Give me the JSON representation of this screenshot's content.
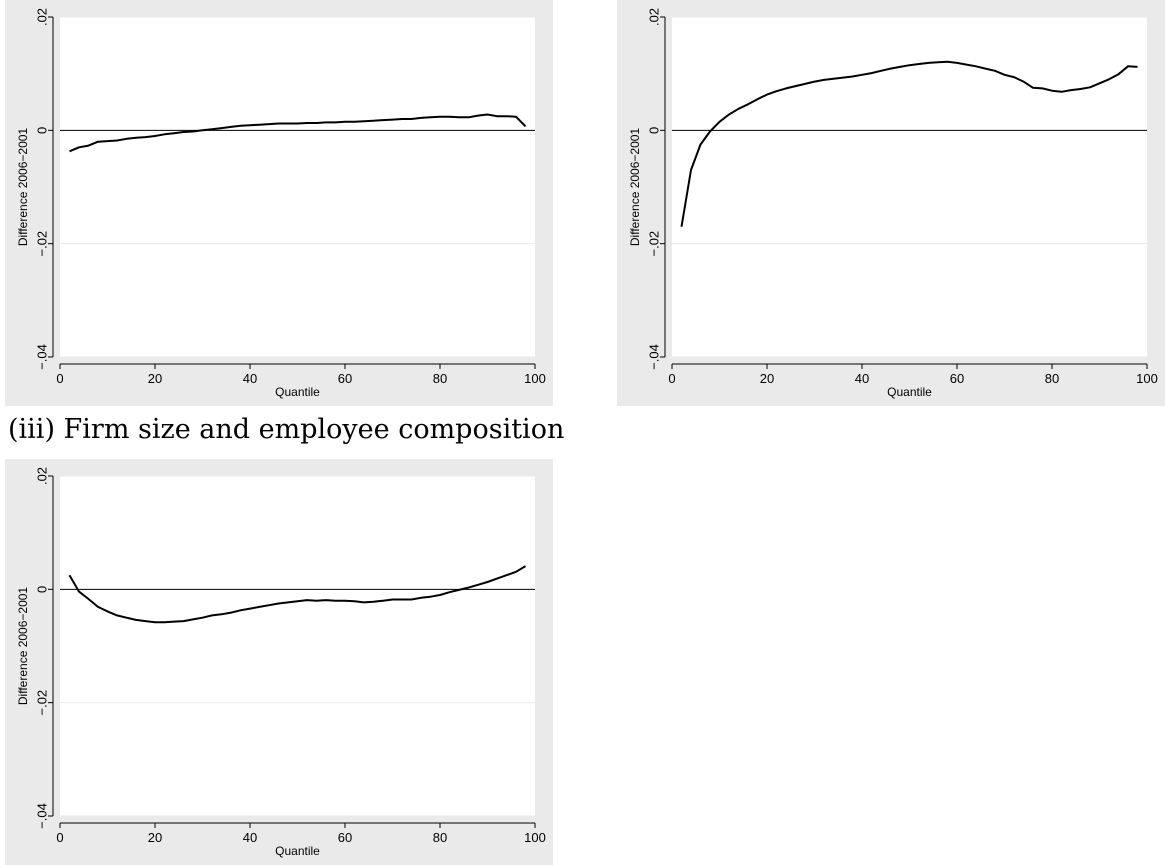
{
  "captions": {
    "panel3": "(iii) Firm size and employee composition"
  },
  "colors": {
    "panel_bg": "#eaeaea",
    "plot_bg": "#ffffff",
    "line": "#000000",
    "grid": "#eaeaea"
  },
  "chart_data": [
    {
      "type": "line",
      "xlabel": "Quantile",
      "ylabel": "Difference 2006−2001",
      "xlim": [
        0,
        100
      ],
      "ylim": [
        -0.04,
        0.02
      ],
      "xticks": [
        0,
        20,
        40,
        60,
        80,
        100
      ],
      "yticks": [
        0.02,
        0,
        -0.02,
        -0.04
      ],
      "ytick_labels": [
        ".02",
        "0",
        "−.02",
        "−.04"
      ],
      "hline": 0,
      "grid": true,
      "series": [
        {
          "x": [
            2,
            4,
            6,
            8,
            10,
            12,
            14,
            16,
            18,
            20,
            22,
            24,
            26,
            28,
            30,
            32,
            34,
            36,
            38,
            40,
            42,
            44,
            46,
            48,
            50,
            52,
            54,
            56,
            58,
            60,
            62,
            64,
            66,
            68,
            70,
            72,
            74,
            76,
            78,
            80,
            82,
            84,
            86,
            88,
            90,
            92,
            94,
            96,
            98
          ],
          "y": [
            -0.0037,
            -0.003,
            -0.0027,
            -0.002,
            -0.0019,
            -0.0018,
            -0.0015,
            -0.0013,
            -0.0012,
            -0.001,
            -0.0007,
            -0.0005,
            -0.0003,
            -0.0002,
            0,
            0.0002,
            0.0004,
            0.0006,
            0.0008,
            0.0009,
            0.001,
            0.0011,
            0.0012,
            0.0012,
            0.0012,
            0.0013,
            0.0013,
            0.0014,
            0.0014,
            0.0015,
            0.0015,
            0.0016,
            0.0017,
            0.0018,
            0.0019,
            0.002,
            0.002,
            0.0022,
            0.0023,
            0.0024,
            0.0024,
            0.0023,
            0.0023,
            0.0026,
            0.0028,
            0.0025,
            0.0025,
            0.0024,
            0.0007
          ]
        }
      ]
    },
    {
      "type": "line",
      "xlabel": "Quantile",
      "ylabel": "Difference 2006−2001",
      "xlim": [
        0,
        100
      ],
      "ylim": [
        -0.04,
        0.02
      ],
      "xticks": [
        0,
        20,
        40,
        60,
        80,
        100
      ],
      "yticks": [
        0.02,
        0,
        -0.02,
        -0.04
      ],
      "ytick_labels": [
        ".02",
        "0",
        "−.02",
        "−.04"
      ],
      "hline": 0,
      "grid": true,
      "series": [
        {
          "x": [
            2,
            4,
            6,
            8,
            10,
            12,
            14,
            16,
            18,
            20,
            22,
            24,
            26,
            28,
            30,
            32,
            34,
            36,
            38,
            40,
            42,
            44,
            46,
            48,
            50,
            52,
            54,
            56,
            58,
            60,
            62,
            64,
            66,
            68,
            70,
            72,
            74,
            76,
            78,
            80,
            82,
            84,
            86,
            88,
            90,
            92,
            94,
            96,
            98
          ],
          "y": [
            -0.017,
            -0.007,
            -0.0025,
            -0.0002,
            0.0015,
            0.0028,
            0.0038,
            0.0046,
            0.0055,
            0.0063,
            0.0069,
            0.0074,
            0.0078,
            0.0082,
            0.0086,
            0.0089,
            0.0091,
            0.0093,
            0.0095,
            0.0098,
            0.0101,
            0.0105,
            0.0109,
            0.0112,
            0.0115,
            0.0117,
            0.0119,
            0.012,
            0.0121,
            0.0119,
            0.0116,
            0.0113,
            0.0109,
            0.0105,
            0.0098,
            0.0094,
            0.0086,
            0.0075,
            0.0074,
            0.007,
            0.0068,
            0.0071,
            0.0073,
            0.0076,
            0.0083,
            0.009,
            0.0099,
            0.0113,
            0.0112
          ]
        }
      ]
    },
    {
      "type": "line",
      "xlabel": "Quantile",
      "ylabel": "Difference 2006−2001",
      "xlim": [
        0,
        100
      ],
      "ylim": [
        -0.04,
        0.02
      ],
      "xticks": [
        0,
        20,
        40,
        60,
        80,
        100
      ],
      "yticks": [
        0.02,
        0,
        -0.02,
        -0.04
      ],
      "ytick_labels": [
        ".02",
        "0",
        "−.02",
        "−.04"
      ],
      "hline": 0,
      "grid": true,
      "series": [
        {
          "x": [
            2,
            4,
            6,
            8,
            10,
            12,
            14,
            16,
            18,
            20,
            22,
            24,
            26,
            28,
            30,
            32,
            34,
            36,
            38,
            40,
            42,
            44,
            46,
            48,
            50,
            52,
            54,
            56,
            58,
            60,
            62,
            64,
            66,
            68,
            70,
            72,
            74,
            76,
            78,
            80,
            82,
            84,
            86,
            88,
            90,
            92,
            94,
            96,
            98
          ],
          "y": [
            0.0025,
            -0.0004,
            -0.0017,
            -0.0031,
            -0.0039,
            -0.0046,
            -0.005,
            -0.0054,
            -0.0056,
            -0.0058,
            -0.0058,
            -0.0057,
            -0.0056,
            -0.0053,
            -0.005,
            -0.0046,
            -0.0044,
            -0.0041,
            -0.0037,
            -0.0034,
            -0.0031,
            -0.0028,
            -0.0025,
            -0.0023,
            -0.0021,
            -0.0019,
            -0.002,
            -0.0019,
            -0.002,
            -0.002,
            -0.0021,
            -0.0023,
            -0.0022,
            -0.002,
            -0.0018,
            -0.0018,
            -0.0018,
            -0.0015,
            -0.0013,
            -0.001,
            -0.0005,
            -0.0001,
            0.0003,
            0.0008,
            0.0013,
            0.0019,
            0.0025,
            0.0031,
            0.0041
          ]
        }
      ]
    }
  ]
}
